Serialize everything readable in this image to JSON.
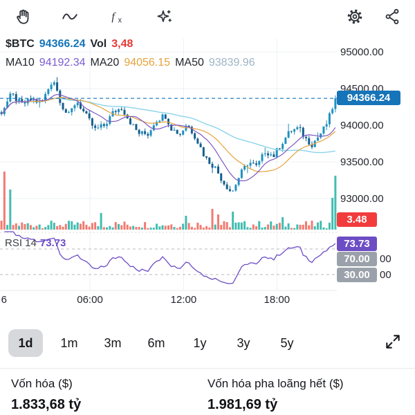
{
  "toolbar": {
    "icons": [
      "hand-tool",
      "wave-indicator",
      "function",
      "ai-sparkles",
      "settings",
      "share"
    ]
  },
  "header": {
    "symbol": "$BTC",
    "price": "94366.24",
    "vol_label": "Vol",
    "vol_value": "3,48",
    "ma10_label": "MA10",
    "ma10_value": "94192.34",
    "ma20_label": "MA20",
    "ma20_value": "94056.15",
    "ma50_label": "MA50",
    "ma50_value": "93839.96"
  },
  "chart_data": {
    "type": "candlestick",
    "symbol": "$BTC",
    "current_price": 94366.24,
    "y_axis": {
      "labels": [
        "95000.00",
        "94500.00",
        "94000.00",
        "93500.00",
        "93000.00"
      ]
    },
    "x_axis": {
      "labels": [
        "6",
        "06:00",
        "12:00",
        "18:00"
      ],
      "fractions": [
        0.012,
        0.267,
        0.545,
        0.822
      ]
    },
    "candle_count": 115,
    "close_anchors": [
      [
        0.0,
        94180
      ],
      [
        0.03,
        94420
      ],
      [
        0.06,
        94280
      ],
      [
        0.09,
        94350
      ],
      [
        0.12,
        94300
      ],
      [
        0.155,
        94640
      ],
      [
        0.18,
        94280
      ],
      [
        0.2,
        94120
      ],
      [
        0.225,
        94340
      ],
      [
        0.25,
        94150
      ],
      [
        0.28,
        93940
      ],
      [
        0.31,
        94000
      ],
      [
        0.335,
        94180
      ],
      [
        0.36,
        94240
      ],
      [
        0.385,
        94050
      ],
      [
        0.41,
        93890
      ],
      [
        0.44,
        93880
      ],
      [
        0.46,
        94060
      ],
      [
        0.49,
        94140
      ],
      [
        0.51,
        93950
      ],
      [
        0.535,
        93880
      ],
      [
        0.555,
        94020
      ],
      [
        0.58,
        93850
      ],
      [
        0.61,
        93560
      ],
      [
        0.64,
        93420
      ],
      [
        0.665,
        93220
      ],
      [
        0.69,
        93080
      ],
      [
        0.715,
        93330
      ],
      [
        0.74,
        93500
      ],
      [
        0.765,
        93430
      ],
      [
        0.79,
        93650
      ],
      [
        0.815,
        93580
      ],
      [
        0.84,
        93760
      ],
      [
        0.865,
        93920
      ],
      [
        0.89,
        93960
      ],
      [
        0.91,
        93820
      ],
      [
        0.93,
        93740
      ],
      [
        0.95,
        93850
      ],
      [
        0.97,
        93980
      ],
      [
        0.985,
        94150
      ],
      [
        1.0,
        94366.24
      ]
    ],
    "volume_spikes": [
      [
        1,
        84,
        "d"
      ],
      [
        3,
        58,
        "u"
      ],
      [
        34,
        24
      ],
      [
        63,
        20
      ],
      [
        72,
        30
      ],
      [
        74,
        22
      ],
      [
        79,
        26
      ],
      [
        96,
        18
      ],
      [
        113,
        46,
        "u"
      ],
      [
        114,
        78,
        "u"
      ]
    ],
    "indicators": {
      "ma10_period": 10,
      "ma20_period": 20,
      "ma50_period": 50
    },
    "rsi": {
      "label": "RSI 14",
      "value": "73.73",
      "period": 14,
      "levels": [
        70,
        30
      ]
    },
    "badges": {
      "price": "94366.24",
      "vol": "3.48",
      "rsi": "73.73",
      "level_70": "70.00",
      "level_30": "30.00"
    },
    "axis_fragments": [
      "00",
      "00"
    ],
    "colors": {
      "accent_blue": "#1674b9",
      "candle_up": "#2090c0",
      "candle_down": "#155e8d",
      "vol_up": "#2fb5a8",
      "vol_down": "#f16d62",
      "ma10": "#7e57c2",
      "ma20": "#e6a23c",
      "ma50": "#8ad4ea",
      "rsi": "#6d4dc4",
      "badge_red": "#f23c3c",
      "badge_gray": "#9ba1aa",
      "badge_purple": "#6d4dc4",
      "grid": "#eef0f4",
      "axis_text": "#23262d"
    }
  },
  "range_selector": {
    "options": [
      "1d",
      "1m",
      "3m",
      "6m",
      "1y",
      "3y",
      "5y"
    ],
    "active": "1d"
  },
  "stats": [
    {
      "label": "Vốn hóa ($)",
      "value": "1.833,68 tỷ"
    },
    {
      "label": "Vốn hóa pha loãng hết ($)",
      "value": "1.981,69 tỷ"
    }
  ]
}
